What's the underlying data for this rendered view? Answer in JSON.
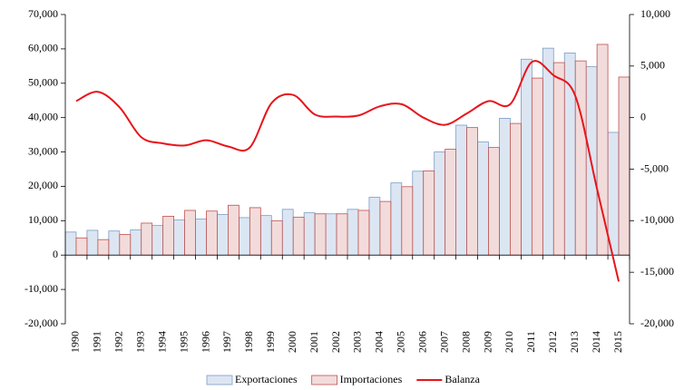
{
  "chart_data": {
    "type": "bar-line",
    "categories": [
      "1990",
      "1991",
      "1992",
      "1993",
      "1994",
      "1995",
      "1996",
      "1997",
      "1998",
      "1999",
      "2000",
      "2001",
      "2002",
      "2003",
      "2004",
      "2005",
      "2006",
      "2007",
      "2008",
      "2009",
      "2010",
      "2011",
      "2012",
      "2013",
      "2014",
      "2015"
    ],
    "series": [
      {
        "name": "Exportaciones",
        "type": "bar",
        "color": "#dce6f2",
        "edge": "#7a9cc6",
        "values": [
          6700,
          7200,
          7000,
          7300,
          8600,
          10200,
          10500,
          11800,
          10900,
          11500,
          13300,
          12300,
          12000,
          13300,
          16800,
          21000,
          24400,
          30000,
          37800,
          32900,
          39800,
          57000,
          60200,
          58800,
          54800,
          35700
        ]
      },
      {
        "name": "Importaciones",
        "type": "bar",
        "color": "#f2dcdb",
        "edge": "#c0504d",
        "values": [
          5000,
          4500,
          6000,
          9300,
          11300,
          13000,
          12800,
          14500,
          13800,
          10000,
          11000,
          12000,
          12000,
          13000,
          15600,
          19900,
          24500,
          30800,
          37100,
          31300,
          38300,
          51500,
          56000,
          56500,
          61300,
          51800
        ]
      },
      {
        "name": "Balanza",
        "type": "line",
        "axis": "y2",
        "color": "#e8141b",
        "values": [
          1600,
          2500,
          1000,
          -1900,
          -2500,
          -2700,
          -2200,
          -2800,
          -2900,
          1400,
          2200,
          300,
          100,
          200,
          1100,
          1300,
          0,
          -700,
          400,
          1600,
          1300,
          5400,
          4100,
          2100,
          -6900,
          -15900
        ]
      }
    ],
    "ylim": [
      -20000,
      70000
    ],
    "yticks": [
      {
        "value": -20000,
        "label": "-20,000"
      },
      {
        "value": -10000,
        "label": "-10,000"
      },
      0,
      {
        "value": 10000,
        "label": "10,000"
      },
      {
        "value": 20000,
        "label": "20,000"
      },
      {
        "value": 30000,
        "label": "30,000"
      },
      {
        "value": 40000,
        "label": "40,000"
      },
      {
        "value": 50000,
        "label": "50,000"
      },
      {
        "value": 60000,
        "label": "60,000"
      },
      {
        "value": 70000,
        "label": "70,000"
      }
    ],
    "y2lim": [
      -20000,
      10000
    ],
    "y2ticks": [
      {
        "value": -20000,
        "label": "-20,000"
      },
      {
        "value": -15000,
        "label": "-15,000"
      },
      {
        "value": -10000,
        "label": "-10,000"
      },
      {
        "value": -5000,
        "label": "-5,000"
      },
      0,
      {
        "value": 5000,
        "label": "5,000"
      },
      {
        "value": 10000,
        "label": "10,000"
      }
    ],
    "legend": "bottom"
  }
}
